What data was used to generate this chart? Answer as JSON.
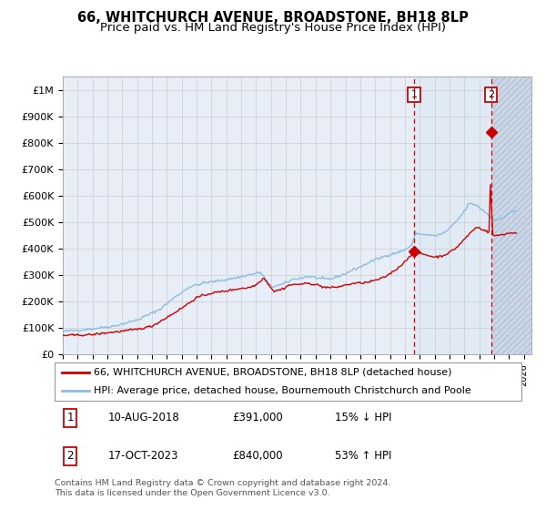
{
  "title": "66, WHITCHURCH AVENUE, BROADSTONE, BH18 8LP",
  "subtitle": "Price paid vs. HM Land Registry's House Price Index (HPI)",
  "ylabel_ticks": [
    "£0",
    "£100K",
    "£200K",
    "£300K",
    "£400K",
    "£500K",
    "£600K",
    "£700K",
    "£800K",
    "£900K",
    "£1M"
  ],
  "ytick_values": [
    0,
    100000,
    200000,
    300000,
    400000,
    500000,
    600000,
    700000,
    800000,
    900000,
    1000000
  ],
  "ylim": [
    0,
    1050000
  ],
  "xlim_start": 1995.0,
  "xlim_end": 2026.5,
  "sale1_date": 2018.62,
  "sale1_price": 391000,
  "sale2_date": 2023.8,
  "sale2_price": 840000,
  "legend_line1": "66, WHITCHURCH AVENUE, BROADSTONE, BH18 8LP (detached house)",
  "legend_line2": "HPI: Average price, detached house, Bournemouth Christchurch and Poole",
  "table_row1_num": "1",
  "table_row1_date": "10-AUG-2018",
  "table_row1_price": "£391,000",
  "table_row1_hpi": "15% ↓ HPI",
  "table_row2_num": "2",
  "table_row2_date": "17-OCT-2023",
  "table_row2_price": "£840,000",
  "table_row2_hpi": "53% ↑ HPI",
  "footer": "Contains HM Land Registry data © Crown copyright and database right 2024.\nThis data is licensed under the Open Government Licence v3.0.",
  "hpi_color": "#8bbde0",
  "price_color": "#cc0000",
  "chart_bg": "#e8eef8",
  "hatch_bg": "#d0dce8",
  "grid_color": "#cccccc",
  "title_fontsize": 10.5,
  "subtitle_fontsize": 9.5,
  "axis_fontsize": 8,
  "legend_fontsize": 8,
  "table_fontsize": 8.5
}
